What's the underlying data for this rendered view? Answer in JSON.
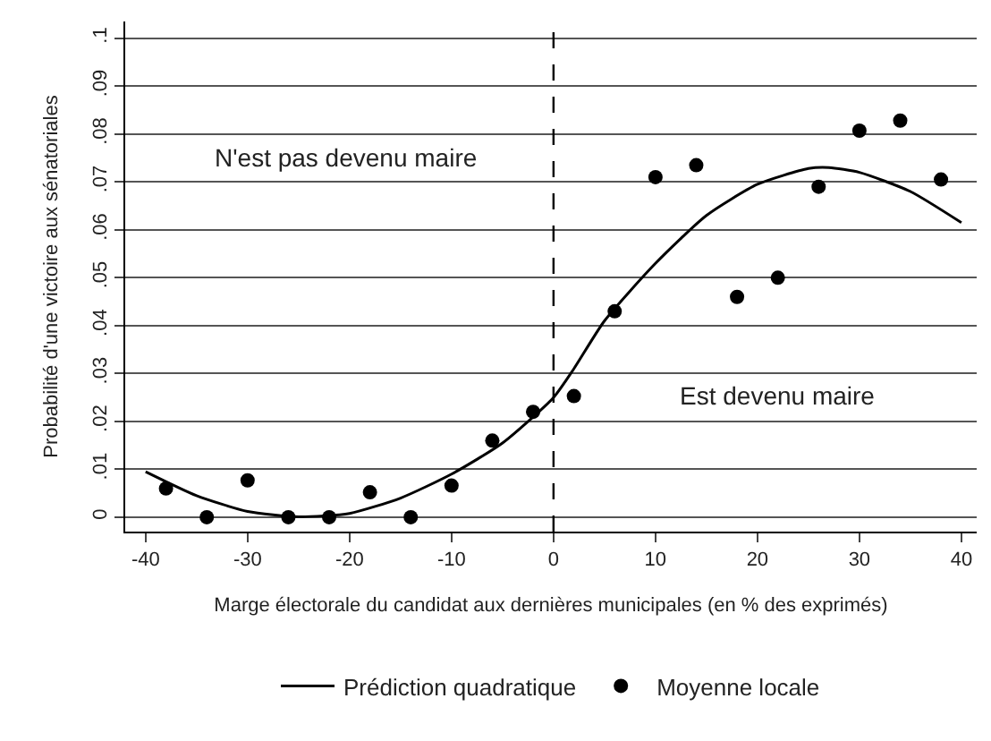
{
  "chart_data": {
    "type": "scatter",
    "xlabel": "Marge électorale du candidat aux dernières municipales (en % des exprimés)",
    "ylabel": "Probabilité d'une victoire aux sénatoriales",
    "series": [
      {
        "name": "Prédiction quadratique",
        "type": "line",
        "color": "#000000",
        "marker": "none",
        "x": [
          -40,
          -35,
          -30,
          -25,
          -20,
          -15,
          -10,
          -5,
          0,
          2,
          5,
          10,
          15,
          20,
          25,
          27,
          30,
          35,
          40
        ],
        "values": [
          0.0095,
          0.0045,
          0.0012,
          0.0001,
          0.0008,
          0.004,
          0.009,
          0.0155,
          0.025,
          0.031,
          0.041,
          0.053,
          0.063,
          0.0695,
          0.0728,
          0.073,
          0.072,
          0.068,
          0.0615
        ]
      },
      {
        "name": "Moyenne locale",
        "color": "#000000",
        "marker": "circle",
        "x": [
          -38,
          -34,
          -30,
          -26,
          -22,
          -18,
          -14,
          -10,
          -6,
          -2,
          2,
          6,
          10,
          14,
          18,
          22,
          26,
          30,
          34,
          38
        ],
        "values": [
          0.006,
          0,
          0.0077,
          0,
          0,
          0.0052,
          0,
          0.0066,
          0.016,
          0.022,
          0.0253,
          0.043,
          0.071,
          0.0735,
          0.046,
          0.05,
          0.069,
          0.0807,
          0.0828,
          0.0705
        ]
      }
    ],
    "xlim": [
      -42,
      41.5
    ],
    "xticks": [
      -40,
      -30,
      -20,
      -10,
      0,
      10,
      20,
      30,
      40
    ],
    "ylim": [
      -0.003,
      0.1035
    ],
    "yticks": [
      {
        "value": 0,
        "label": "0"
      },
      {
        "value": 0.01,
        "label": ".01"
      },
      {
        "value": 0.02,
        "label": ".02"
      },
      {
        "value": 0.03,
        "label": ".03"
      },
      {
        "value": 0.04,
        "label": ".04"
      },
      {
        "value": 0.05,
        "label": ".05"
      },
      {
        "value": 0.06,
        "label": ".06"
      },
      {
        "value": 0.07,
        "label": ".07"
      },
      {
        "value": 0.08,
        "label": ".08"
      },
      {
        "value": 0.09,
        "label": ".09"
      },
      {
        "value": 0.1,
        "label": ".1"
      }
    ],
    "ref_lines": [
      {
        "axis": "x",
        "value": 0,
        "line_style": "dashed",
        "color": "#000000"
      }
    ],
    "annotations": [
      "N'est pas devenu maire",
      "Est devenu maire"
    ],
    "grid": "y",
    "legend": "bottom"
  }
}
